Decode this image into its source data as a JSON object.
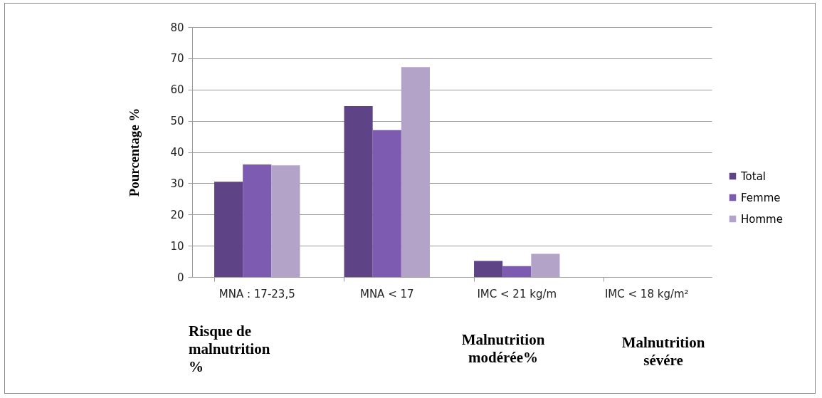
{
  "chart_data": {
    "type": "bar",
    "ylabel": "Pourcentage %",
    "categories": [
      "MNA : 17-23,5",
      "MNA < 17",
      "IMC < 21 kg/m",
      "IMC < 18 kg/m²"
    ],
    "series": [
      {
        "name": "Total",
        "color": "#5e4486",
        "values": [
          30.5,
          54.7,
          5.1,
          0
        ]
      },
      {
        "name": "Femme",
        "color": "#7d5bb0",
        "values": [
          36,
          47,
          3.5,
          0
        ]
      },
      {
        "name": "Homme",
        "color": "#b3a3c9",
        "values": [
          35.7,
          67.2,
          7.4,
          0
        ]
      }
    ],
    "ylim": [
      0,
      80
    ],
    "yticks": [
      0,
      10,
      20,
      30,
      40,
      50,
      60,
      70,
      80
    ],
    "grid": "y",
    "legend": "right",
    "annotations": [
      "Risque de malnutrition %",
      "Malnutrition modérée%",
      "Malnutrition sévére"
    ]
  }
}
